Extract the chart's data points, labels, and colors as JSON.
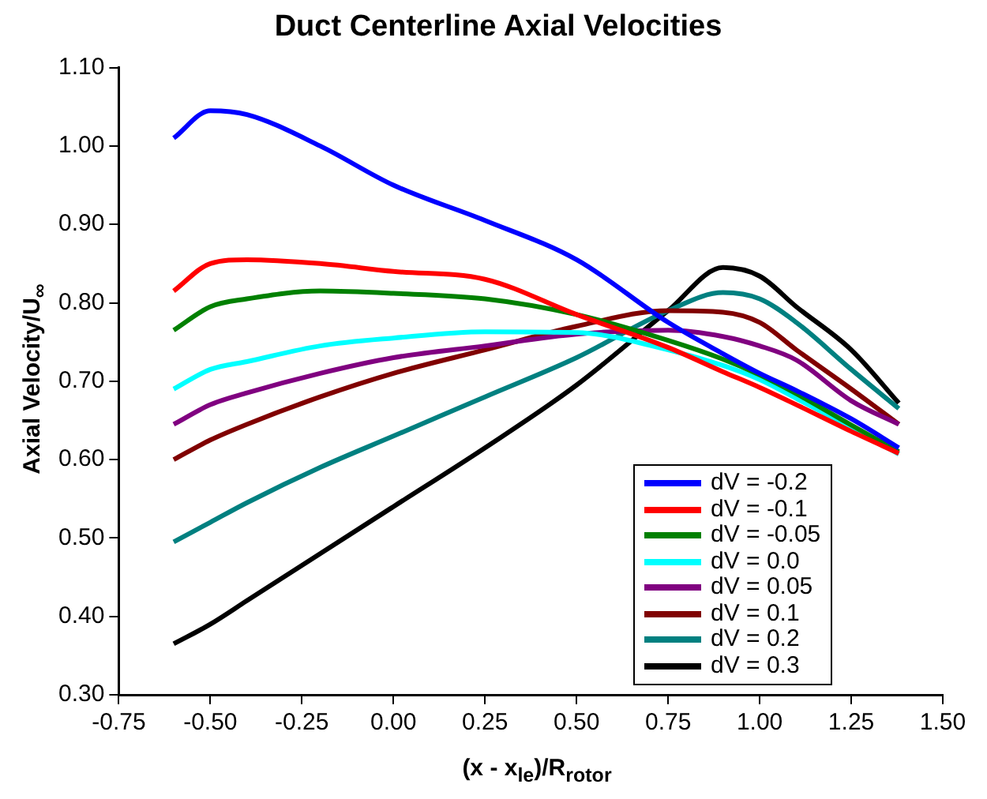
{
  "chart_data": {
    "type": "line",
    "title": "Duct Centerline Axial Velocities",
    "xlabel": "(x - x$_{le}$)/R$_{rotor}$",
    "ylabel": "Axial Velocity/U$_{∞}$",
    "x": [
      -0.6,
      -0.5,
      -0.4,
      -0.2,
      0,
      0.25,
      0.5,
      0.75,
      0.9,
      1.0,
      1.1,
      1.25,
      1.38
    ],
    "series": [
      {
        "name": "dV = -0.2",
        "color": "#0000ff",
        "values": [
          1.01,
          1.045,
          1.04,
          1.0,
          0.95,
          0.905,
          0.855,
          0.775,
          0.735,
          0.71,
          0.688,
          0.652,
          0.615
        ]
      },
      {
        "name": "dV = -0.1",
        "color": "#ff0000",
        "values": [
          0.815,
          0.85,
          0.855,
          0.85,
          0.84,
          0.83,
          0.785,
          0.743,
          0.712,
          0.692,
          0.67,
          0.636,
          0.608
        ]
      },
      {
        "name": "dV = -0.05",
        "color": "#008000",
        "values": [
          0.765,
          0.795,
          0.805,
          0.815,
          0.812,
          0.805,
          0.785,
          0.752,
          0.728,
          0.708,
          0.684,
          0.644,
          0.61
        ]
      },
      {
        "name": "dV = 0.0",
        "color": "#00ffff",
        "values": [
          0.69,
          0.715,
          0.725,
          0.745,
          0.755,
          0.763,
          0.762,
          0.74,
          0.72,
          0.702,
          0.678,
          0.641,
          0.607
        ]
      },
      {
        "name": "dV = 0.05",
        "color": "#800080",
        "values": [
          0.645,
          0.67,
          0.685,
          0.71,
          0.73,
          0.745,
          0.76,
          0.765,
          0.757,
          0.745,
          0.727,
          0.675,
          0.645
        ]
      },
      {
        "name": "dV = 0.1",
        "color": "#800000",
        "values": [
          0.6,
          0.625,
          0.645,
          0.68,
          0.71,
          0.74,
          0.77,
          0.79,
          0.788,
          0.775,
          0.74,
          0.69,
          0.645
        ]
      },
      {
        "name": "dV = 0.2",
        "color": "#008080",
        "values": [
          0.495,
          0.52,
          0.545,
          0.59,
          0.63,
          0.68,
          0.73,
          0.79,
          0.813,
          0.805,
          0.775,
          0.715,
          0.665
        ]
      },
      {
        "name": "dV = 0.3",
        "color": "#000000",
        "values": [
          0.365,
          0.39,
          0.42,
          0.48,
          0.54,
          0.615,
          0.695,
          0.79,
          0.845,
          0.834,
          0.795,
          0.74,
          0.672
        ]
      }
    ],
    "xlim": [
      -0.75,
      1.5
    ],
    "xticks": [
      {
        "value": -0.75,
        "label": "-0.75"
      },
      {
        "value": -0.5,
        "label": "-0.50"
      },
      {
        "value": -0.25,
        "label": "-0.25"
      },
      {
        "value": 0,
        "label": "0.00"
      },
      {
        "value": 0.25,
        "label": "0.25"
      },
      {
        "value": 0.5,
        "label": "0.50"
      },
      {
        "value": 0.75,
        "label": "0.75"
      },
      {
        "value": 1,
        "label": "1.00"
      },
      {
        "value": 1.25,
        "label": "1.25"
      },
      {
        "value": 1.5,
        "label": "1.50"
      }
    ],
    "ylim": [
      0.3,
      1.1
    ],
    "yticks": [
      {
        "value": 0.3,
        "label": "0.30"
      },
      {
        "value": 0.4,
        "label": "0.40"
      },
      {
        "value": 0.5,
        "label": "0.50"
      },
      {
        "value": 0.6,
        "label": "0.60"
      },
      {
        "value": 0.7,
        "label": "0.70"
      },
      {
        "value": 0.8,
        "label": "0.80"
      },
      {
        "value": 0.9,
        "label": "0.90"
      },
      {
        "value": 1.0,
        "label": "1.00"
      },
      {
        "value": 1.1,
        "label": "1.10"
      }
    ],
    "grid": false,
    "legend": "bottom right",
    "marker": "none",
    "line_style": "solid"
  }
}
